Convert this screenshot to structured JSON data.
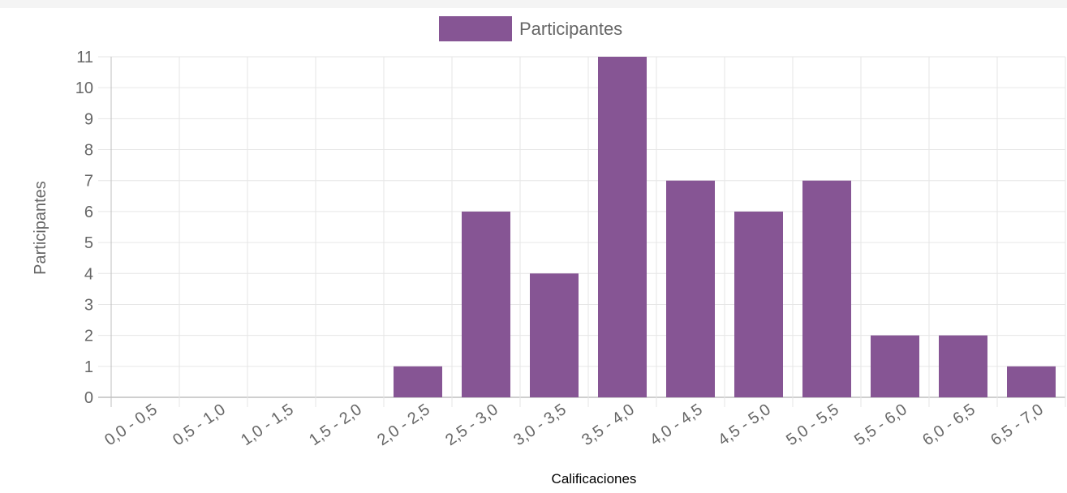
{
  "chart_data": {
    "type": "bar",
    "categories": [
      "0,0 - 0,5",
      "0,5 - 1,0",
      "1,0 - 1,5",
      "1,5 - 2,0",
      "2,0 - 2,5",
      "2,5 - 3,0",
      "3,0 - 3,5",
      "3,5 - 4,0",
      "4,0 - 4,5",
      "4,5 - 5,0",
      "5,0 - 5,5",
      "5,5 - 6,0",
      "6,0 - 6,5",
      "6,5 - 7,0"
    ],
    "series": [
      {
        "name": "Participantes",
        "values": [
          0,
          0,
          0,
          0,
          1,
          6,
          4,
          11,
          7,
          6,
          7,
          2,
          2,
          1
        ]
      }
    ],
    "xlabel": "Calificaciones",
    "ylabel": "Participantes",
    "ylim": [
      0,
      11
    ],
    "yticks": [
      0,
      1,
      2,
      3,
      4,
      5,
      6,
      7,
      8,
      9,
      10,
      11
    ],
    "grid": true,
    "legend_position": "top-center",
    "colors": {
      "bar": "#865594",
      "grid": "#e6e6e6",
      "axis": "#bfbfbf",
      "text": "#666666"
    }
  }
}
